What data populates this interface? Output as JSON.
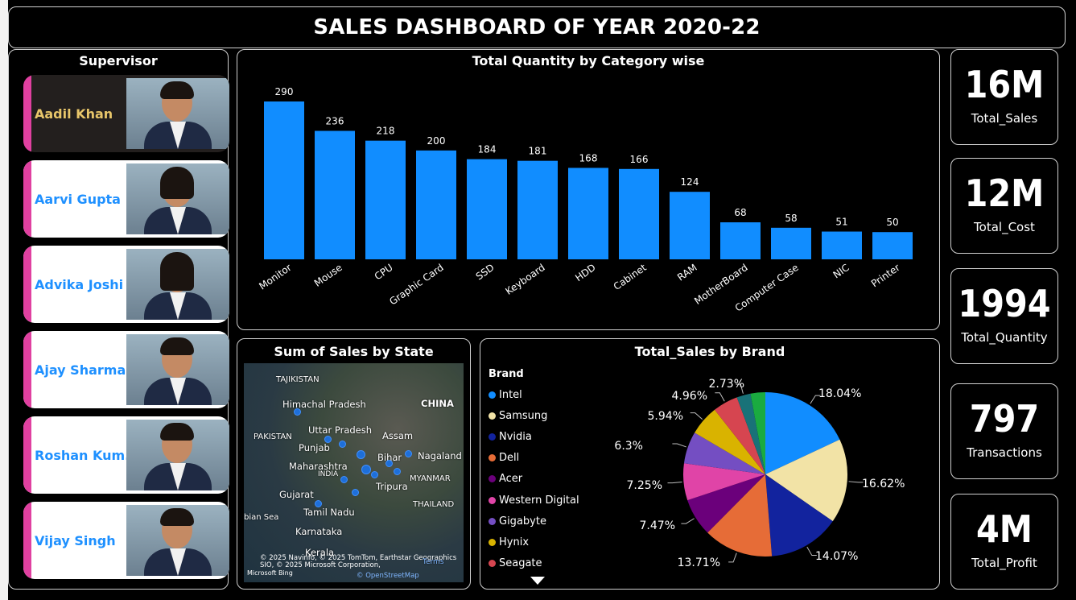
{
  "header": {
    "title": "SALES DASHBOARD OF YEAR 2020-22"
  },
  "supervisor": {
    "title": "Supervisor",
    "items": [
      {
        "name": "Aadil Khan"
      },
      {
        "name": "Aarvi Gupta"
      },
      {
        "name": "Advika Joshi"
      },
      {
        "name": "Ajay Sharma"
      },
      {
        "name": "Roshan Kum..."
      },
      {
        "name": "Vijay Singh"
      }
    ]
  },
  "kpis": [
    {
      "value": "16M",
      "label": "Total_Sales"
    },
    {
      "value": "12M",
      "label": "Total_Cost"
    },
    {
      "value": "1994",
      "label": "Total_Quantity"
    },
    {
      "value": "797",
      "label": "Transactions"
    },
    {
      "value": "4M",
      "label": "Total_Profit"
    }
  ],
  "chart_data": [
    {
      "type": "bar",
      "title": "Total Quantity by Category wise",
      "categories": [
        "Monitor",
        "Mouse",
        "CPU",
        "Graphic Card",
        "SSD",
        "Keyboard",
        "HDD",
        "Cabinet",
        "RAM",
        "MotherBoard",
        "Computer Case",
        "NIC",
        "Printer"
      ],
      "values": [
        290,
        236,
        218,
        200,
        184,
        181,
        168,
        166,
        124,
        68,
        58,
        51,
        50
      ],
      "color": "#118dff",
      "ylim": [
        0,
        290
      ]
    },
    {
      "type": "pie",
      "title": "Total_Sales by Brand",
      "legend_title": "Brand",
      "series": [
        {
          "name": "Intel",
          "value": 18.04,
          "label": "18.04%",
          "color": "#118dff"
        },
        {
          "name": "Samsung",
          "value": 16.62,
          "label": "16.62%",
          "color": "#f2e3a6"
        },
        {
          "name": "Nvidia",
          "value": 14.07,
          "label": "14.07%",
          "color": "#12239e"
        },
        {
          "name": "Dell",
          "value": 13.71,
          "label": "13.71%",
          "color": "#e66c37"
        },
        {
          "name": "Acer",
          "value": 7.47,
          "label": "7.47%",
          "color": "#6b007b"
        },
        {
          "name": "Western Digital",
          "value": 7.25,
          "label": "7.25%",
          "color": "#e044a7"
        },
        {
          "name": "Gigabyte",
          "value": 6.3,
          "label": "6.3%",
          "color": "#744ec2"
        },
        {
          "name": "Hynix",
          "value": 5.94,
          "label": "5.94%",
          "color": "#d9b300"
        },
        {
          "name": "Seagate",
          "value": 4.96,
          "label": "4.96%",
          "color": "#d64550"
        },
        {
          "name": "",
          "value": 2.73,
          "label": "2.73%",
          "color": "#197278"
        },
        {
          "name": "",
          "value": 2.91,
          "label": "",
          "color": "#1aab40"
        }
      ]
    }
  ],
  "map": {
    "title": "Sum of Sales by State",
    "labels": [
      "TAJIKISTAN",
      "Himachal Pradesh",
      "CHINA",
      "Uttar Pradesh",
      "PAKISTAN",
      "Assam",
      "Punjab",
      "Bihar",
      "Nagaland",
      "Maharashtra",
      "INDIA",
      "MYANMAR",
      "Tripura",
      "Gujarat",
      "THAILAND",
      "bian Sea",
      "Tamil Nadu",
      "Karnataka",
      "Kerala"
    ],
    "credit": "© 2025 Navinfo, © 2025 TomTom, Earthstar Geographics SIO, © 2025 Microsoft Corporation,",
    "terms": "Terms",
    "osm": "© OpenStreetMap",
    "bing": "Microsoft Bing"
  }
}
